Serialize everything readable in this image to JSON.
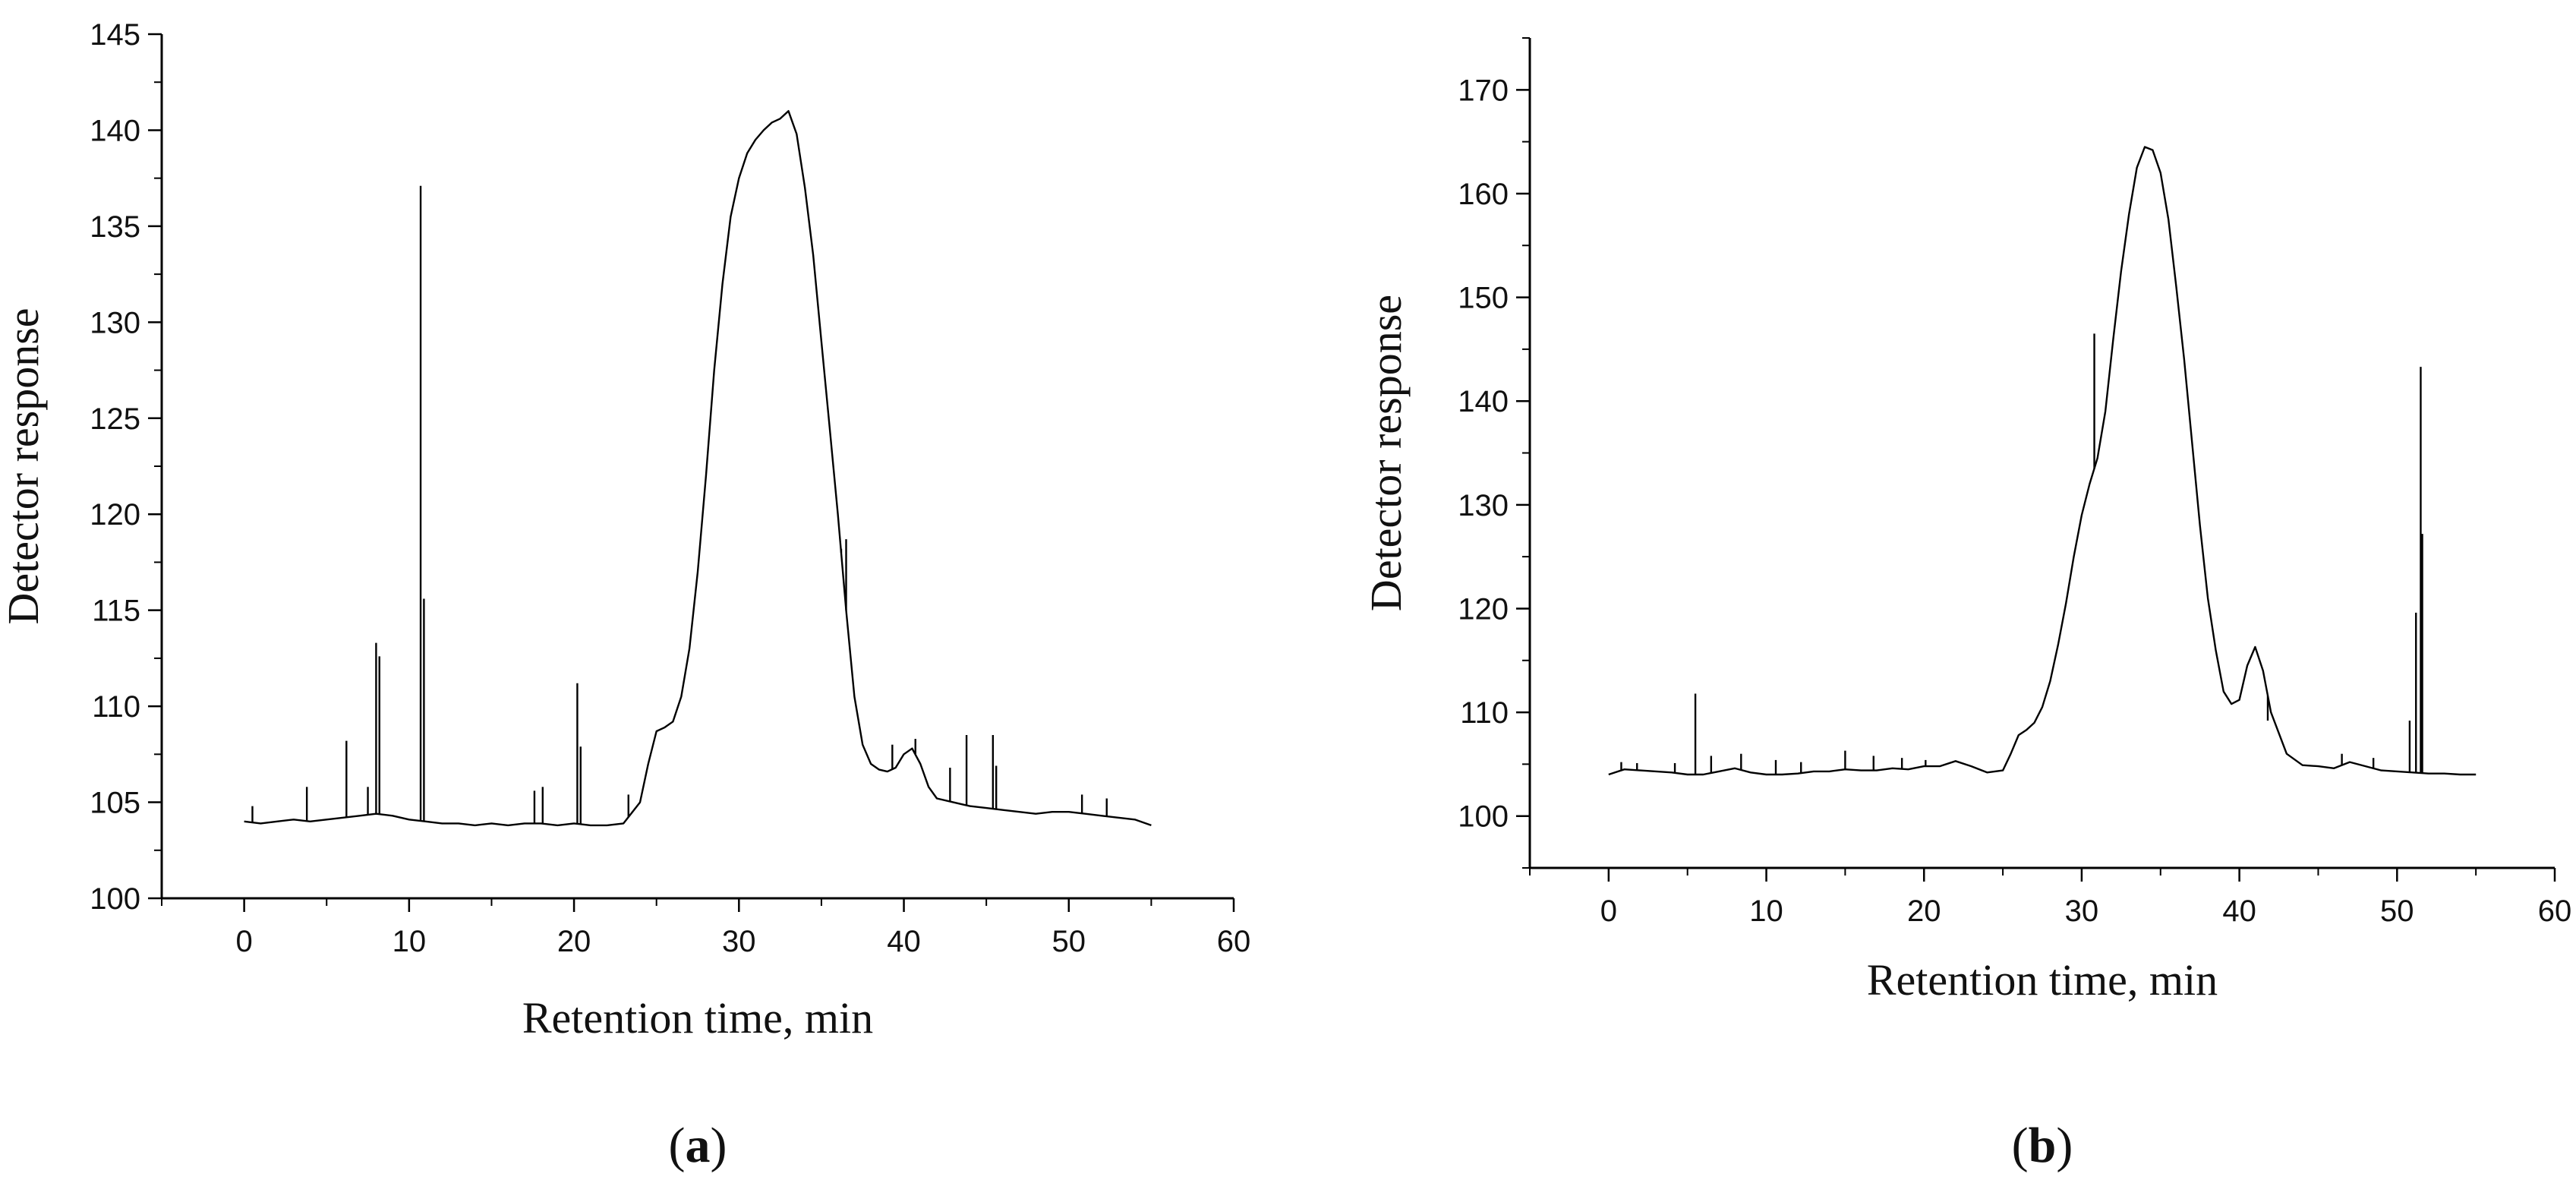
{
  "chart_data": [
    {
      "type": "line",
      "panel_label": "a",
      "xlabel": "Retention time, min",
      "ylabel": "Detector response",
      "xlim": [
        -5,
        60
      ],
      "ylim": [
        100,
        145
      ],
      "xticks": [
        0,
        10,
        20,
        30,
        40,
        50,
        60
      ],
      "yticks": [
        100,
        105,
        110,
        115,
        120,
        125,
        130,
        135,
        140,
        145
      ],
      "grid": false,
      "series": [
        {
          "x": [
            0,
            1,
            2,
            3,
            4,
            5,
            6,
            7,
            8,
            9,
            10,
            11,
            12,
            13,
            14,
            15,
            16,
            17,
            18,
            19,
            20,
            21,
            22,
            23,
            24,
            24.5,
            25,
            25.5,
            26,
            26.5,
            27,
            27.5,
            28,
            28.5,
            29,
            29.5,
            30,
            30.5,
            31,
            31.5,
            32,
            32.5,
            33,
            33.5,
            34,
            34.5,
            35,
            35.5,
            36,
            36.5,
            37,
            37.5,
            38,
            38.5,
            39,
            39.5,
            40,
            40.5,
            41,
            41.5,
            42,
            43,
            44,
            45,
            46,
            47,
            48,
            49,
            50,
            51,
            52,
            53,
            54,
            55
          ],
          "y": [
            104,
            103.9,
            104,
            104.1,
            104,
            104.1,
            104.2,
            104.3,
            104.4,
            104.3,
            104.1,
            104,
            103.9,
            103.9,
            103.8,
            103.9,
            103.8,
            103.9,
            103.9,
            103.8,
            103.9,
            103.8,
            103.8,
            103.9,
            105,
            107,
            108.7,
            108.9,
            109.2,
            110.5,
            113,
            117,
            122,
            127.5,
            132,
            135.5,
            137.5,
            138.8,
            139.5,
            140,
            140.4,
            140.6,
            141,
            139.8,
            137,
            133.5,
            129,
            124.5,
            120,
            115,
            110.5,
            108,
            107,
            106.7,
            106.6,
            106.8,
            107.5,
            107.8,
            107,
            105.8,
            105.2,
            105,
            104.8,
            104.7,
            104.6,
            104.5,
            104.4,
            104.5,
            104.5,
            104.4,
            104.3,
            104.2,
            104.1,
            103.8
          ]
        }
      ],
      "spikes": [
        {
          "x": 0.5,
          "y": 104.8
        },
        {
          "x": 3.8,
          "y": 105.8
        },
        {
          "x": 6.2,
          "y": 108.2
        },
        {
          "x": 7.5,
          "y": 105.8
        },
        {
          "x": 8.0,
          "y": 113.3
        },
        {
          "x": 8.2,
          "y": 112.6
        },
        {
          "x": 10.7,
          "y": 137.1
        },
        {
          "x": 10.9,
          "y": 115.6
        },
        {
          "x": 17.6,
          "y": 105.6
        },
        {
          "x": 18.1,
          "y": 105.8
        },
        {
          "x": 20.2,
          "y": 111.2
        },
        {
          "x": 20.4,
          "y": 107.9
        },
        {
          "x": 23.3,
          "y": 105.4
        },
        {
          "x": 36.2,
          "y": 118.2
        },
        {
          "x": 36.5,
          "y": 118.7
        },
        {
          "x": 39.3,
          "y": 108
        },
        {
          "x": 40.7,
          "y": 108.3
        },
        {
          "x": 42.8,
          "y": 106.8
        },
        {
          "x": 43.8,
          "y": 108.5
        },
        {
          "x": 45.4,
          "y": 108.5
        },
        {
          "x": 45.6,
          "y": 106.9
        },
        {
          "x": 50.8,
          "y": 105.4
        },
        {
          "x": 52.3,
          "y": 105.2
        }
      ]
    },
    {
      "type": "line",
      "panel_label": "b",
      "xlabel": "Retention time, min",
      "ylabel": "Detector response",
      "xlim": [
        -5,
        60
      ],
      "ylim": [
        95,
        175
      ],
      "xticks": [
        0,
        10,
        20,
        30,
        40,
        50,
        60
      ],
      "yticks": [
        100,
        110,
        120,
        130,
        140,
        150,
        160,
        170
      ],
      "grid": false,
      "series": [
        {
          "x": [
            0,
            1,
            2,
            3,
            4,
            5,
            6,
            7,
            8,
            9,
            10,
            11,
            12,
            13,
            14,
            15,
            16,
            17,
            18,
            19,
            20,
            21,
            22,
            23,
            24,
            25,
            25.5,
            26,
            26.5,
            27,
            27.5,
            28,
            28.5,
            29,
            29.5,
            30,
            30.5,
            31,
            31.5,
            32,
            32.5,
            33,
            33.5,
            34,
            34.5,
            35,
            35.5,
            36,
            36.5,
            37,
            37.5,
            38,
            38.5,
            39,
            39.5,
            40,
            40.5,
            41,
            41.5,
            42,
            43,
            44,
            45,
            46,
            47,
            48,
            49,
            50,
            51,
            52,
            53,
            54,
            55
          ],
          "y": [
            104,
            104.5,
            104.4,
            104.3,
            104.2,
            104,
            104,
            104.3,
            104.6,
            104.2,
            104,
            104,
            104.1,
            104.3,
            104.3,
            104.5,
            104.4,
            104.4,
            104.6,
            104.5,
            104.8,
            104.8,
            105.3,
            104.8,
            104.2,
            104.4,
            106,
            107.8,
            108.3,
            109,
            110.5,
            113,
            116.5,
            120.5,
            125,
            129,
            132,
            134.5,
            139,
            146,
            152.5,
            158,
            162.5,
            164.5,
            164.2,
            162,
            157.5,
            151,
            144,
            136,
            128,
            121,
            116,
            112,
            110.8,
            111.2,
            114.5,
            116.3,
            114,
            110,
            106,
            104.9,
            104.8,
            104.6,
            105.2,
            104.8,
            104.4,
            104.3,
            104.2,
            104.1,
            104.1,
            104,
            104
          ]
        }
      ],
      "spikes": [
        {
          "x": 0.8,
          "y": 105.2
        },
        {
          "x": 1.8,
          "y": 105.1
        },
        {
          "x": 4.2,
          "y": 105.1
        },
        {
          "x": 5.5,
          "y": 111.8
        },
        {
          "x": 6.5,
          "y": 105.8
        },
        {
          "x": 8.4,
          "y": 106
        },
        {
          "x": 10.6,
          "y": 105.4
        },
        {
          "x": 12.2,
          "y": 105.2
        },
        {
          "x": 15.0,
          "y": 106.3
        },
        {
          "x": 16.8,
          "y": 105.8
        },
        {
          "x": 18.6,
          "y": 105.6
        },
        {
          "x": 20.1,
          "y": 105.4
        },
        {
          "x": 30.8,
          "y": 146.5
        },
        {
          "x": 41.8,
          "y": 109.2
        },
        {
          "x": 46.5,
          "y": 106
        },
        {
          "x": 48.5,
          "y": 105.6
        },
        {
          "x": 50.8,
          "y": 109.2
        },
        {
          "x": 51.2,
          "y": 119.6
        },
        {
          "x": 51.5,
          "y": 143.3
        },
        {
          "x": 51.6,
          "y": 127.2
        }
      ]
    }
  ]
}
